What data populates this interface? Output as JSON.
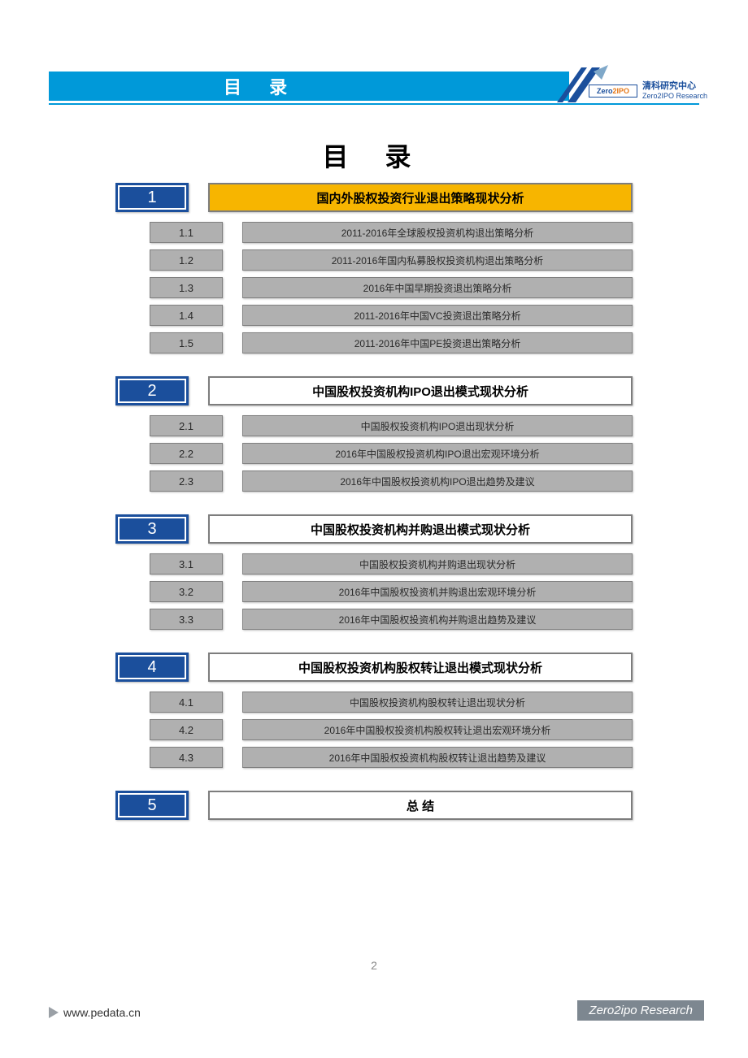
{
  "colors": {
    "header_bar": "#0099d9",
    "section_num_bg": "#1b4f9c",
    "section_title_highlight": "#f7b500",
    "section_title_normal": "#ffffff",
    "sub_bg": "#b0b0b0",
    "sub_border": "#808080",
    "footer_badge": "#7d8790"
  },
  "header": {
    "bar_title": "目 录",
    "logo_zero": "Zero",
    "logo_ipo": "2IPO",
    "logo_cn": "清科研究中心",
    "logo_en": "Zero2IPO Research"
  },
  "page_title": "目 录",
  "page_number": "2",
  "footer": {
    "url": "www.pedata.cn",
    "brand": "Zero2ipo Research"
  },
  "sections": [
    {
      "num": "1",
      "title": "国内外股权投资行业退出策略现状分析",
      "highlight": true,
      "subs": [
        {
          "num": "1.1",
          "title": "2011-2016年全球股权投资机构退出策略分析"
        },
        {
          "num": "1.2",
          "title": "2011-2016年国内私募股权投资机构退出策略分析"
        },
        {
          "num": "1.3",
          "title": "2016年中国早期投资退出策略分析"
        },
        {
          "num": "1.4",
          "title": "2011-2016年中国VC投资退出策略分析"
        },
        {
          "num": "1.5",
          "title": "2011-2016年中国PE投资退出策略分析"
        }
      ]
    },
    {
      "num": "2",
      "title": "中国股权投资机构IPO退出模式现状分析",
      "highlight": false,
      "subs": [
        {
          "num": "2.1",
          "title": "中国股权投资机构IPO退出现状分析"
        },
        {
          "num": "2.2",
          "title": "2016年中国股权投资机构IPO退出宏观环境分析"
        },
        {
          "num": "2.3",
          "title": "2016年中国股权投资机构IPO退出趋势及建议"
        }
      ]
    },
    {
      "num": "3",
      "title": "中国股权投资机构并购退出模式现状分析",
      "highlight": false,
      "subs": [
        {
          "num": "3.1",
          "title": "中国股权投资机构并购退出现状分析"
        },
        {
          "num": "3.2",
          "title": "2016年中国股权投资机并购退出宏观环境分析"
        },
        {
          "num": "3.3",
          "title": "2016年中国股权投资机构并购退出趋势及建议"
        }
      ]
    },
    {
      "num": "4",
      "title": "中国股权投资机构股权转让退出模式现状分析",
      "highlight": false,
      "subs": [
        {
          "num": "4.1",
          "title": "中国股权投资机构股权转让退出现状分析"
        },
        {
          "num": "4.2",
          "title": "2016年中国股权投资机构股权转让退出宏观环境分析"
        },
        {
          "num": "4.3",
          "title": "2016年中国股权投资机构股权转让退出趋势及建议"
        }
      ]
    },
    {
      "num": "5",
      "title": "总  结",
      "highlight": false,
      "subs": []
    }
  ]
}
